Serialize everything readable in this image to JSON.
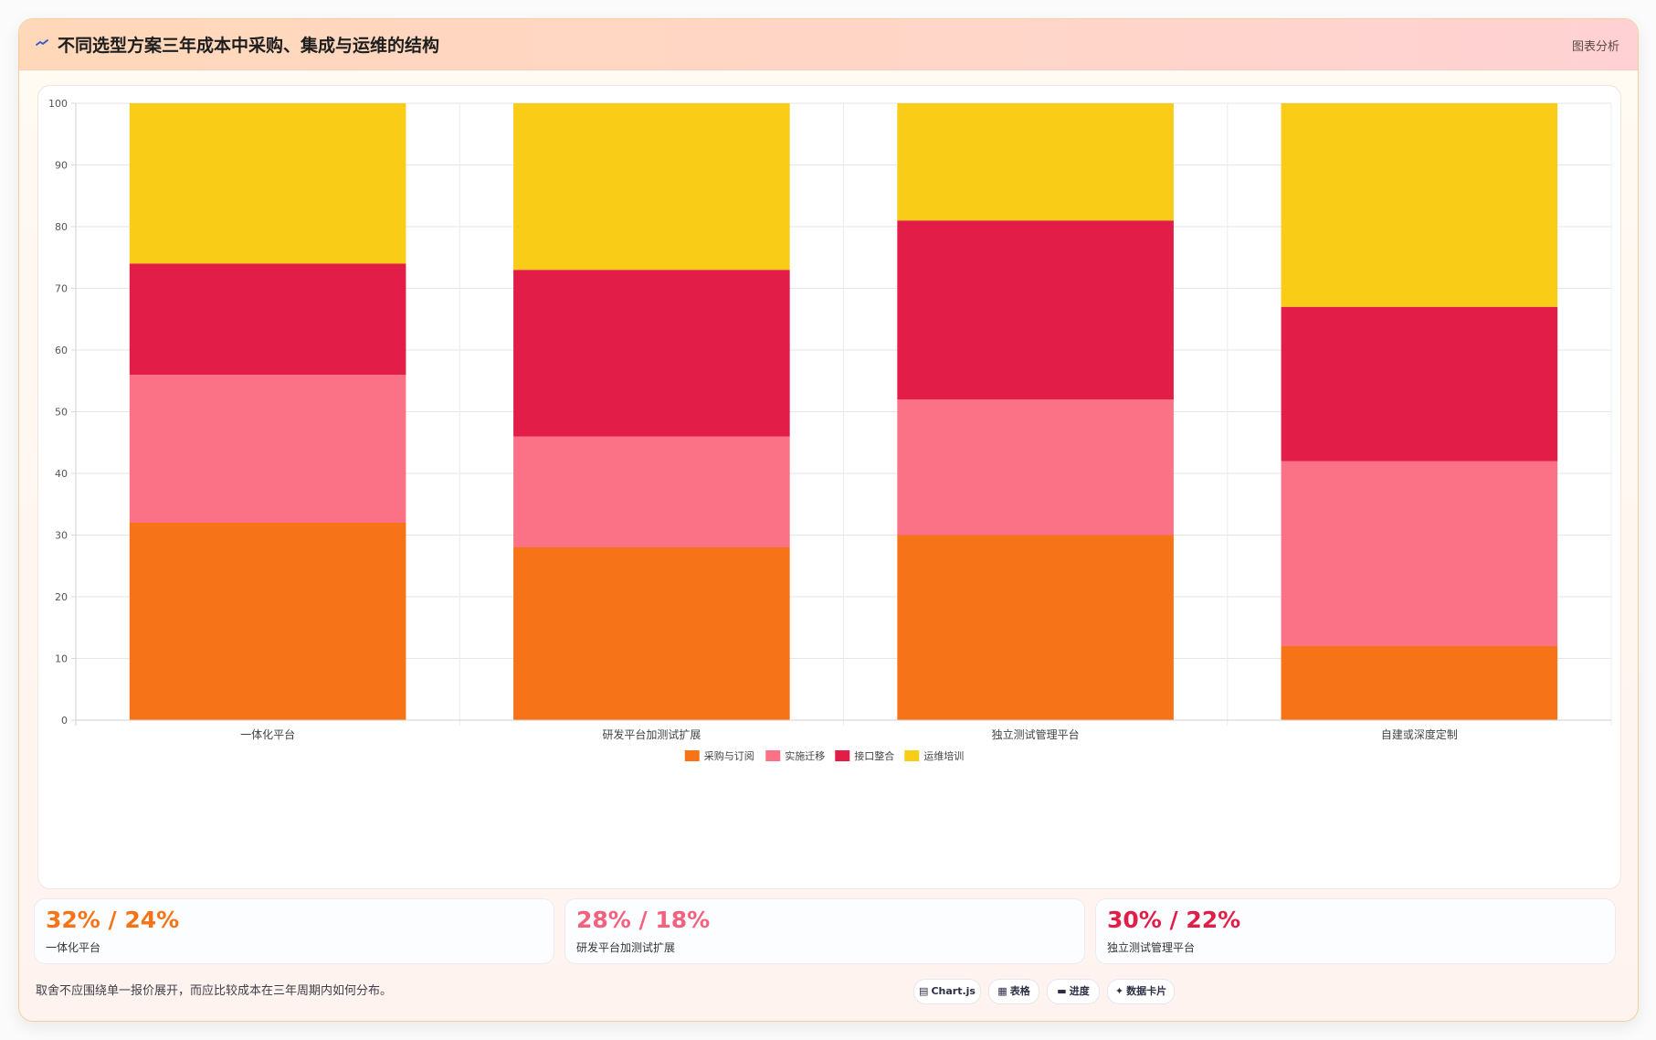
{
  "header": {
    "title": "不同选型方案三年成本中采购、集成与运维的结构",
    "badge": "图表分析"
  },
  "colors": {
    "procurement": "#f77317",
    "implementation": "#fb7185",
    "integration": "#e11d48",
    "operations": "#f8cc17"
  },
  "chart_data": {
    "type": "bar",
    "stacked": true,
    "categories": [
      "一体化平台",
      "研发平台加测试扩展",
      "独立测试管理平台",
      "自建或深度定制"
    ],
    "series": [
      {
        "name": "采购与订阅",
        "color": "#f77317",
        "values": [
          32,
          28,
          30,
          12
        ]
      },
      {
        "name": "实施迁移",
        "color": "#fb7185",
        "values": [
          24,
          18,
          22,
          30
        ]
      },
      {
        "name": "接口整合",
        "color": "#e11d48",
        "values": [
          18,
          27,
          29,
          25
        ]
      },
      {
        "name": "运维培训",
        "color": "#f8cc17",
        "values": [
          26,
          27,
          19,
          33
        ]
      }
    ],
    "ylim": [
      0,
      100
    ],
    "yticks": [
      0,
      10,
      20,
      30,
      40,
      50,
      60,
      70,
      80,
      90,
      100
    ],
    "grid": true,
    "legend": "bottom"
  },
  "stats": [
    {
      "value": "32% / 24%",
      "label": "一体化平台",
      "color": "#f77317"
    },
    {
      "value": "28% / 18%",
      "label": "研发平台加测试扩展",
      "color": "#f4617f"
    },
    {
      "value": "30% / 22%",
      "label": "独立测试管理平台",
      "color": "#e11d48"
    }
  ],
  "footer": {
    "note": "取舍不应围绕单一报价展开，而应比较成本在三年周期内如何分布。",
    "pills": [
      {
        "icon": "chart-icon",
        "glyph": "▤",
        "label": "Chart.js"
      },
      {
        "icon": "table-icon",
        "glyph": "▦",
        "label": "表格"
      },
      {
        "icon": "progress-icon",
        "glyph": "▬",
        "label": "进度"
      },
      {
        "icon": "sparkle-icon",
        "glyph": "✦",
        "label": "数据卡片"
      }
    ]
  }
}
